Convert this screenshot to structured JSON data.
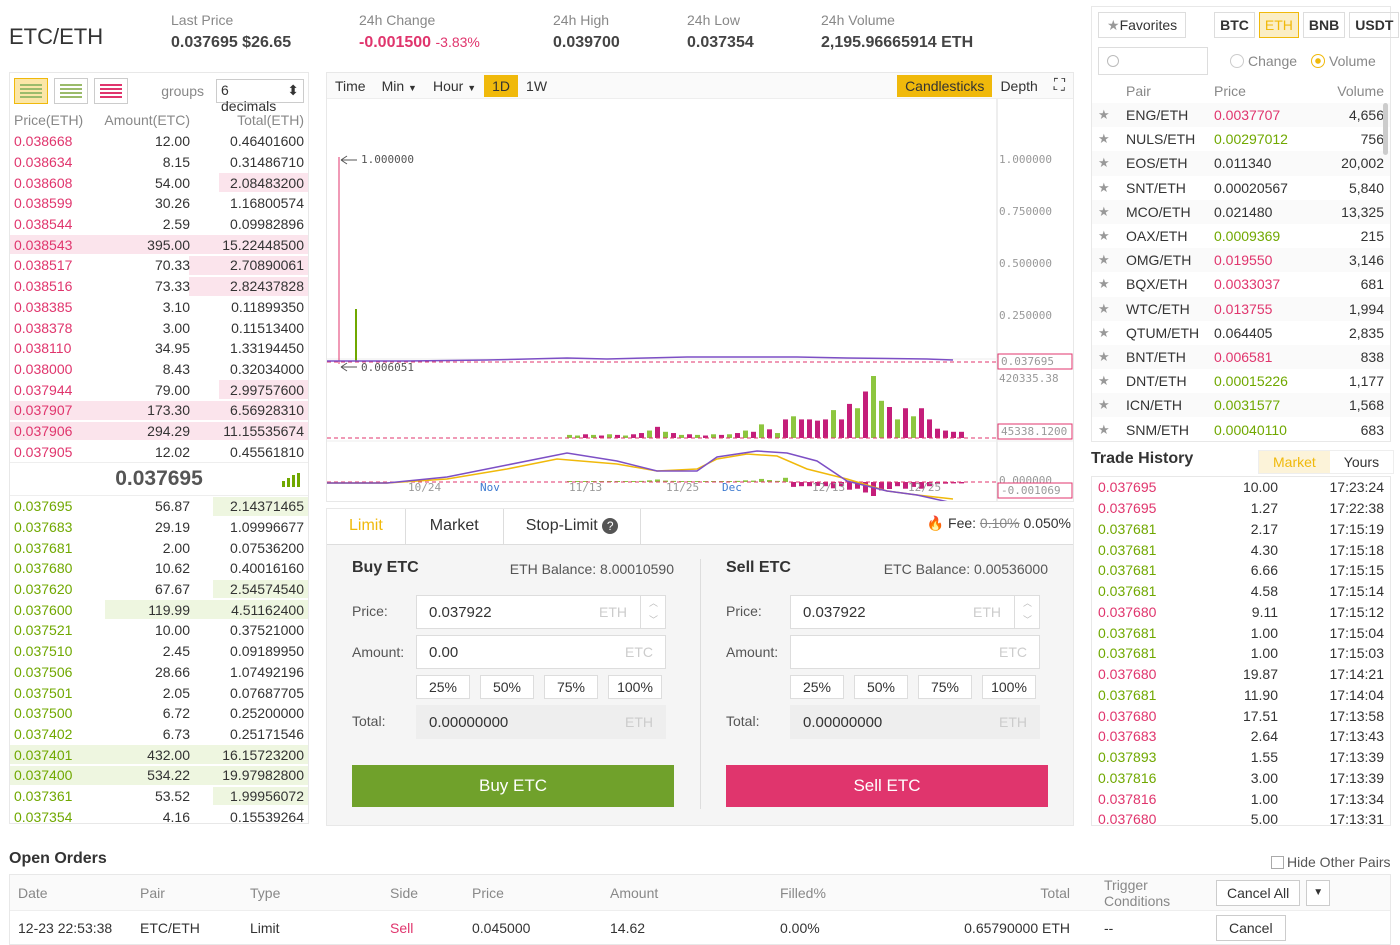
{
  "header": {
    "pair": "ETC/ETH",
    "stats": [
      {
        "label": "Last Price",
        "value": "0.037695 $26.65",
        "color": "#444"
      },
      {
        "label": "24h Change",
        "value": "-0.001500",
        "extra": "-3.83%",
        "color": "#e0356d"
      },
      {
        "label": "24h High",
        "value": "0.039700",
        "color": "#444"
      },
      {
        "label": "24h Low",
        "value": "0.037354",
        "color": "#444"
      },
      {
        "label": "24h Volume",
        "value": "2,195.96665914 ETH",
        "color": "#444"
      }
    ]
  },
  "orderbook": {
    "groups_label": "groups",
    "decimals": "6 decimals",
    "headers": [
      "Price(ETH)",
      "Amount(ETC)",
      "Total(ETH)"
    ],
    "asks": [
      {
        "price": "0.038668",
        "amount": "12.00",
        "total": "0.46401600",
        "depth": 0
      },
      {
        "price": "0.038634",
        "amount": "8.15",
        "total": "0.31486710",
        "depth": 0
      },
      {
        "price": "0.038608",
        "amount": "54.00",
        "total": "2.08483200",
        "depth": 0.3
      },
      {
        "price": "0.038599",
        "amount": "30.26",
        "total": "1.16800574",
        "depth": 0
      },
      {
        "price": "0.038544",
        "amount": "2.59",
        "total": "0.09982896",
        "depth": 0
      },
      {
        "price": "0.038543",
        "amount": "395.00",
        "total": "15.22448500",
        "depth": 1
      },
      {
        "price": "0.038517",
        "amount": "70.33",
        "total": "2.70890061",
        "depth": 0.4
      },
      {
        "price": "0.038516",
        "amount": "73.33",
        "total": "2.82437828",
        "depth": 0.4
      },
      {
        "price": "0.038385",
        "amount": "3.10",
        "total": "0.11899350",
        "depth": 0
      },
      {
        "price": "0.038378",
        "amount": "3.00",
        "total": "0.11513400",
        "depth": 0
      },
      {
        "price": "0.038110",
        "amount": "34.95",
        "total": "1.33194450",
        "depth": 0
      },
      {
        "price": "0.038000",
        "amount": "8.43",
        "total": "0.32034000",
        "depth": 0
      },
      {
        "price": "0.037944",
        "amount": "79.00",
        "total": "2.99757600",
        "depth": 0.3
      },
      {
        "price": "0.037907",
        "amount": "173.30",
        "total": "6.56928310",
        "depth": 1
      },
      {
        "price": "0.037906",
        "amount": "294.29",
        "total": "11.15535674",
        "depth": 1
      },
      {
        "price": "0.037905",
        "amount": "12.02",
        "total": "0.45561810",
        "depth": 0
      }
    ],
    "mid_price": "0.037695",
    "bids": [
      {
        "price": "0.037695",
        "amount": "56.87",
        "total": "2.14371465",
        "depth": 0.32
      },
      {
        "price": "0.037683",
        "amount": "29.19",
        "total": "1.09996677",
        "depth": 0
      },
      {
        "price": "0.037681",
        "amount": "2.00",
        "total": "0.07536200",
        "depth": 0
      },
      {
        "price": "0.037680",
        "amount": "10.62",
        "total": "0.40016160",
        "depth": 0
      },
      {
        "price": "0.037620",
        "amount": "67.67",
        "total": "2.54574540",
        "depth": 0.32
      },
      {
        "price": "0.037600",
        "amount": "119.99",
        "total": "4.51162400",
        "depth": 0.68
      },
      {
        "price": "0.037521",
        "amount": "10.00",
        "total": "0.37521000",
        "depth": 0
      },
      {
        "price": "0.037510",
        "amount": "2.45",
        "total": "0.09189950",
        "depth": 0
      },
      {
        "price": "0.037506",
        "amount": "28.66",
        "total": "1.07492196",
        "depth": 0
      },
      {
        "price": "0.037501",
        "amount": "2.05",
        "total": "0.07687705",
        "depth": 0
      },
      {
        "price": "0.037500",
        "amount": "6.72",
        "total": "0.25200000",
        "depth": 0
      },
      {
        "price": "0.037402",
        "amount": "6.73",
        "total": "0.25171546",
        "depth": 0
      },
      {
        "price": "0.037401",
        "amount": "432.00",
        "total": "16.15723200",
        "depth": 1
      },
      {
        "price": "0.037400",
        "amount": "534.22",
        "total": "19.97982800",
        "depth": 1
      },
      {
        "price": "0.037361",
        "amount": "53.52",
        "total": "1.99956072",
        "depth": 0.32
      },
      {
        "price": "0.037354",
        "amount": "4.16",
        "total": "0.15539264",
        "depth": 0
      }
    ]
  },
  "chart": {
    "toolbar": [
      "Time",
      "Min",
      "Hour",
      "1D",
      "1W"
    ],
    "active_interval": "1D",
    "views": [
      "Candlesticks",
      "Depth"
    ],
    "active_view": "Candlesticks",
    "price_axis": [
      "1.000000",
      "0.750000",
      "0.500000",
      "0.250000"
    ],
    "last_price_tag": "0.037695",
    "max_annot": "1.000000",
    "min_annot": "0.006051",
    "vol_max": "420335.38",
    "vol_tag": "45338.1200",
    "macd_tag": "-0.001069",
    "macd_zero": "0.000000",
    "dates": [
      "10/24",
      "Nov",
      "11/13",
      "11/25",
      "Dec",
      "12/13",
      "12/25"
    ],
    "volume_bars": [
      {
        "v": 0.05,
        "up": true
      },
      {
        "v": 0.04,
        "up": true
      },
      {
        "v": 0.06,
        "up": false
      },
      {
        "v": 0.05,
        "up": true
      },
      {
        "v": 0.04,
        "up": false
      },
      {
        "v": 0.06,
        "up": true
      },
      {
        "v": 0.05,
        "up": false
      },
      {
        "v": 0.04,
        "up": true
      },
      {
        "v": 0.06,
        "up": false
      },
      {
        "v": 0.08,
        "up": false
      },
      {
        "v": 0.12,
        "up": true
      },
      {
        "v": 0.18,
        "up": false
      },
      {
        "v": 0.1,
        "up": true
      },
      {
        "v": 0.08,
        "up": false
      },
      {
        "v": 0.05,
        "up": true
      },
      {
        "v": 0.06,
        "up": false
      },
      {
        "v": 0.05,
        "up": true
      },
      {
        "v": 0.04,
        "up": false
      },
      {
        "v": 0.06,
        "up": true
      },
      {
        "v": 0.05,
        "up": false
      },
      {
        "v": 0.06,
        "up": true
      },
      {
        "v": 0.08,
        "up": false
      },
      {
        "v": 0.12,
        "up": true
      },
      {
        "v": 0.1,
        "up": false
      },
      {
        "v": 0.22,
        "up": true
      },
      {
        "v": 0.14,
        "up": false
      },
      {
        "v": 0.08,
        "up": true
      },
      {
        "v": 0.3,
        "up": false
      },
      {
        "v": 0.35,
        "up": true
      },
      {
        "v": 0.3,
        "up": false
      },
      {
        "v": 0.3,
        "up": false
      },
      {
        "v": 0.28,
        "up": false
      },
      {
        "v": 0.3,
        "up": false
      },
      {
        "v": 0.45,
        "up": true
      },
      {
        "v": 0.3,
        "up": false
      },
      {
        "v": 0.55,
        "up": false
      },
      {
        "v": 0.48,
        "up": true
      },
      {
        "v": 0.75,
        "up": false
      },
      {
        "v": 1.0,
        "up": true
      },
      {
        "v": 0.6,
        "up": true
      },
      {
        "v": 0.5,
        "up": false
      },
      {
        "v": 0.3,
        "up": true
      },
      {
        "v": 0.48,
        "up": false
      },
      {
        "v": 0.35,
        "up": true
      },
      {
        "v": 0.48,
        "up": false
      },
      {
        "v": 0.3,
        "up": false
      },
      {
        "v": 0.15,
        "up": false
      },
      {
        "v": 0.12,
        "up": false
      },
      {
        "v": 0.1,
        "up": false
      },
      {
        "v": 0.1,
        "up": false
      }
    ]
  },
  "trade_form": {
    "tabs": [
      "Limit",
      "Market",
      "Stop-Limit"
    ],
    "fee_label": "Fee:",
    "fee_old": "0.10%",
    "fee_new": "0.050%",
    "buy": {
      "title": "Buy ETC",
      "balance": "ETH Balance: 8.00010590",
      "price": "0.037922",
      "amount": "0.00",
      "total": "0.00000000",
      "button": "Buy ETC"
    },
    "sell": {
      "title": "Sell ETC",
      "balance": "ETC Balance: 0.00536000",
      "price": "0.037922",
      "amount": "",
      "total": "0.00000000",
      "button": "Sell ETC"
    },
    "labels": {
      "price": "Price:",
      "amount": "Amount:",
      "total": "Total:"
    },
    "units": {
      "eth": "ETH",
      "etc": "ETC"
    },
    "pcts": [
      "25%",
      "50%",
      "75%",
      "100%"
    ],
    "colors": {
      "buy": "#70a12b",
      "sell": "#e0356d"
    }
  },
  "markets": {
    "favorites": "Favorites",
    "tabs": [
      "BTC",
      "ETH",
      "BNB",
      "USDT"
    ],
    "active_tab": "ETH",
    "sort": {
      "change": "Change",
      "volume": "Volume"
    },
    "headers": [
      "Pair",
      "Price",
      "Volume"
    ],
    "rows": [
      {
        "pair": "ENG/ETH",
        "price": "0.0037707",
        "volume": "4,656",
        "color": "#e0356d"
      },
      {
        "pair": "NULS/ETH",
        "price": "0.00297012",
        "volume": "756",
        "color": "#70a800"
      },
      {
        "pair": "EOS/ETH",
        "price": "0.011340",
        "volume": "20,002",
        "color": "#333"
      },
      {
        "pair": "SNT/ETH",
        "price": "0.00020567",
        "volume": "5,840",
        "color": "#333"
      },
      {
        "pair": "MCO/ETH",
        "price": "0.021480",
        "volume": "13,325",
        "color": "#333"
      },
      {
        "pair": "OAX/ETH",
        "price": "0.0009369",
        "volume": "215",
        "color": "#70a800"
      },
      {
        "pair": "OMG/ETH",
        "price": "0.019550",
        "volume": "3,146",
        "color": "#e0356d"
      },
      {
        "pair": "BQX/ETH",
        "price": "0.0033037",
        "volume": "681",
        "color": "#e0356d"
      },
      {
        "pair": "WTC/ETH",
        "price": "0.013755",
        "volume": "1,994",
        "color": "#e0356d"
      },
      {
        "pair": "QTUM/ETH",
        "price": "0.064405",
        "volume": "2,835",
        "color": "#333"
      },
      {
        "pair": "BNT/ETH",
        "price": "0.006581",
        "volume": "838",
        "color": "#e0356d"
      },
      {
        "pair": "DNT/ETH",
        "price": "0.00015226",
        "volume": "1,177",
        "color": "#70a800"
      },
      {
        "pair": "ICN/ETH",
        "price": "0.0031577",
        "volume": "1,568",
        "color": "#70a800"
      },
      {
        "pair": "SNM/ETH",
        "price": "0.00040110",
        "volume": "683",
        "color": "#70a800"
      }
    ]
  },
  "trade_history": {
    "title": "Trade History",
    "tabs": [
      "Market",
      "Yours"
    ],
    "rows": [
      {
        "price": "0.037695",
        "amount": "10.00",
        "time": "17:23:24",
        "color": "#e0356d"
      },
      {
        "price": "0.037695",
        "amount": "1.27",
        "time": "17:22:38",
        "color": "#e0356d"
      },
      {
        "price": "0.037681",
        "amount": "2.17",
        "time": "17:15:19",
        "color": "#70a800"
      },
      {
        "price": "0.037681",
        "amount": "4.30",
        "time": "17:15:18",
        "color": "#70a800"
      },
      {
        "price": "0.037681",
        "amount": "6.66",
        "time": "17:15:15",
        "color": "#70a800"
      },
      {
        "price": "0.037681",
        "amount": "4.58",
        "time": "17:15:14",
        "color": "#70a800"
      },
      {
        "price": "0.037680",
        "amount": "9.11",
        "time": "17:15:12",
        "color": "#e0356d"
      },
      {
        "price": "0.037681",
        "amount": "1.00",
        "time": "17:15:04",
        "color": "#70a800"
      },
      {
        "price": "0.037681",
        "amount": "1.00",
        "time": "17:15:03",
        "color": "#70a800"
      },
      {
        "price": "0.037680",
        "amount": "19.87",
        "time": "17:14:21",
        "color": "#e0356d"
      },
      {
        "price": "0.037681",
        "amount": "11.90",
        "time": "17:14:04",
        "color": "#70a800"
      },
      {
        "price": "0.037680",
        "amount": "17.51",
        "time": "17:13:58",
        "color": "#e0356d"
      },
      {
        "price": "0.037683",
        "amount": "2.64",
        "time": "17:13:43",
        "color": "#e0356d"
      },
      {
        "price": "0.037893",
        "amount": "1.55",
        "time": "17:13:39",
        "color": "#70a800"
      },
      {
        "price": "0.037816",
        "amount": "3.00",
        "time": "17:13:39",
        "color": "#70a800"
      },
      {
        "price": "0.037816",
        "amount": "1.00",
        "time": "17:13:34",
        "color": "#e0356d"
      },
      {
        "price": "0.037680",
        "amount": "5.00",
        "time": "17:13:31",
        "color": "#e0356d"
      }
    ]
  },
  "open_orders": {
    "title": "Open Orders",
    "hide_other": "Hide Other Pairs",
    "headers": [
      "Date",
      "Pair",
      "Type",
      "Side",
      "Price",
      "Amount",
      "Filled%",
      "Total",
      "Trigger Conditions"
    ],
    "cancel_all": "Cancel All",
    "rows": [
      {
        "date": "12-23 22:53:38",
        "pair": "ETC/ETH",
        "type": "Limit",
        "side": "Sell",
        "price": "0.045000",
        "amount": "14.62",
        "filled": "0.00%",
        "total": "0.65790000 ETH",
        "trigger": "--",
        "cancel": "Cancel"
      }
    ]
  }
}
